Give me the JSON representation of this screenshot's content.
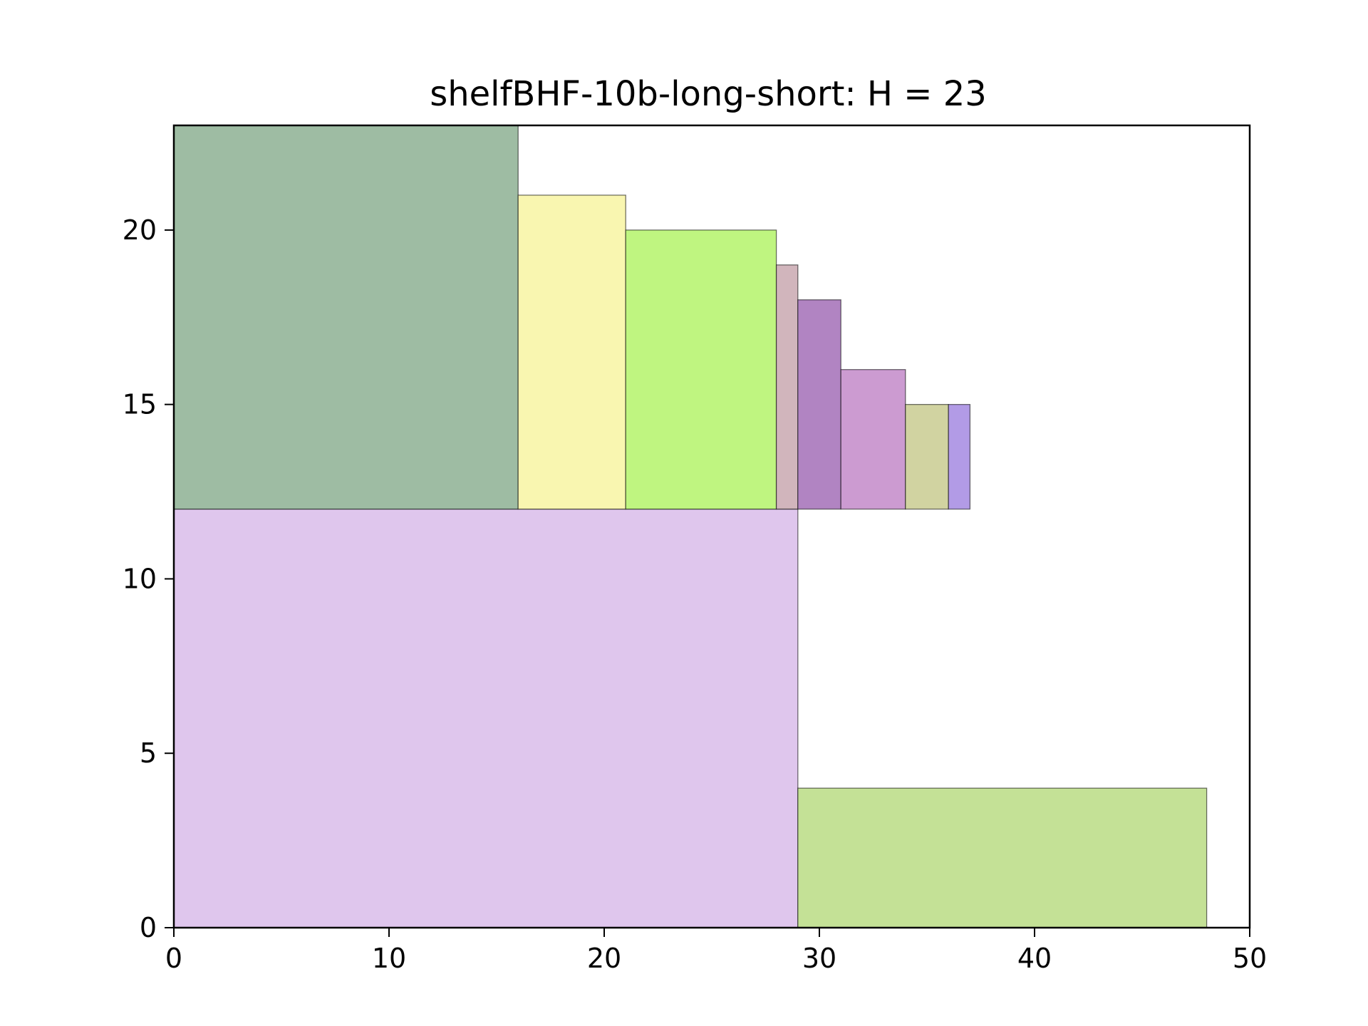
{
  "chart_data": {
    "type": "bar",
    "title": "shelfBHF-10b-long-short: H = 23",
    "xlabel": "",
    "ylabel": "",
    "xlim": [
      0,
      50
    ],
    "ylim": [
      0,
      23
    ],
    "xticks": [
      "0",
      "10",
      "20",
      "30",
      "40",
      "50"
    ],
    "yticks": [
      "0",
      "5",
      "10",
      "15",
      "20"
    ],
    "grid": false,
    "legend": "none",
    "rectangles": [
      {
        "x": 0,
        "y": 0,
        "w": 29,
        "h": 12,
        "color": "#dfc6ed"
      },
      {
        "x": 29,
        "y": 0,
        "w": 19,
        "h": 4,
        "color": "#c4e196"
      },
      {
        "x": 0,
        "y": 12,
        "w": 16,
        "h": 11,
        "color": "#9ebca3"
      },
      {
        "x": 16,
        "y": 12,
        "w": 5,
        "h": 9,
        "color": "#f9f6b0"
      },
      {
        "x": 21,
        "y": 12,
        "w": 7,
        "h": 8,
        "color": "#bff580"
      },
      {
        "x": 28,
        "y": 12,
        "w": 1,
        "h": 7,
        "color": "#d1b5bc"
      },
      {
        "x": 29,
        "y": 12,
        "w": 2,
        "h": 6,
        "color": "#b184c2"
      },
      {
        "x": 31,
        "y": 12,
        "w": 3,
        "h": 4,
        "color": "#cc9bd1"
      },
      {
        "x": 34,
        "y": 12,
        "w": 2,
        "h": 3,
        "color": "#d1d3a1"
      },
      {
        "x": 36,
        "y": 12,
        "w": 1,
        "h": 3,
        "color": "#b29be6"
      }
    ]
  }
}
